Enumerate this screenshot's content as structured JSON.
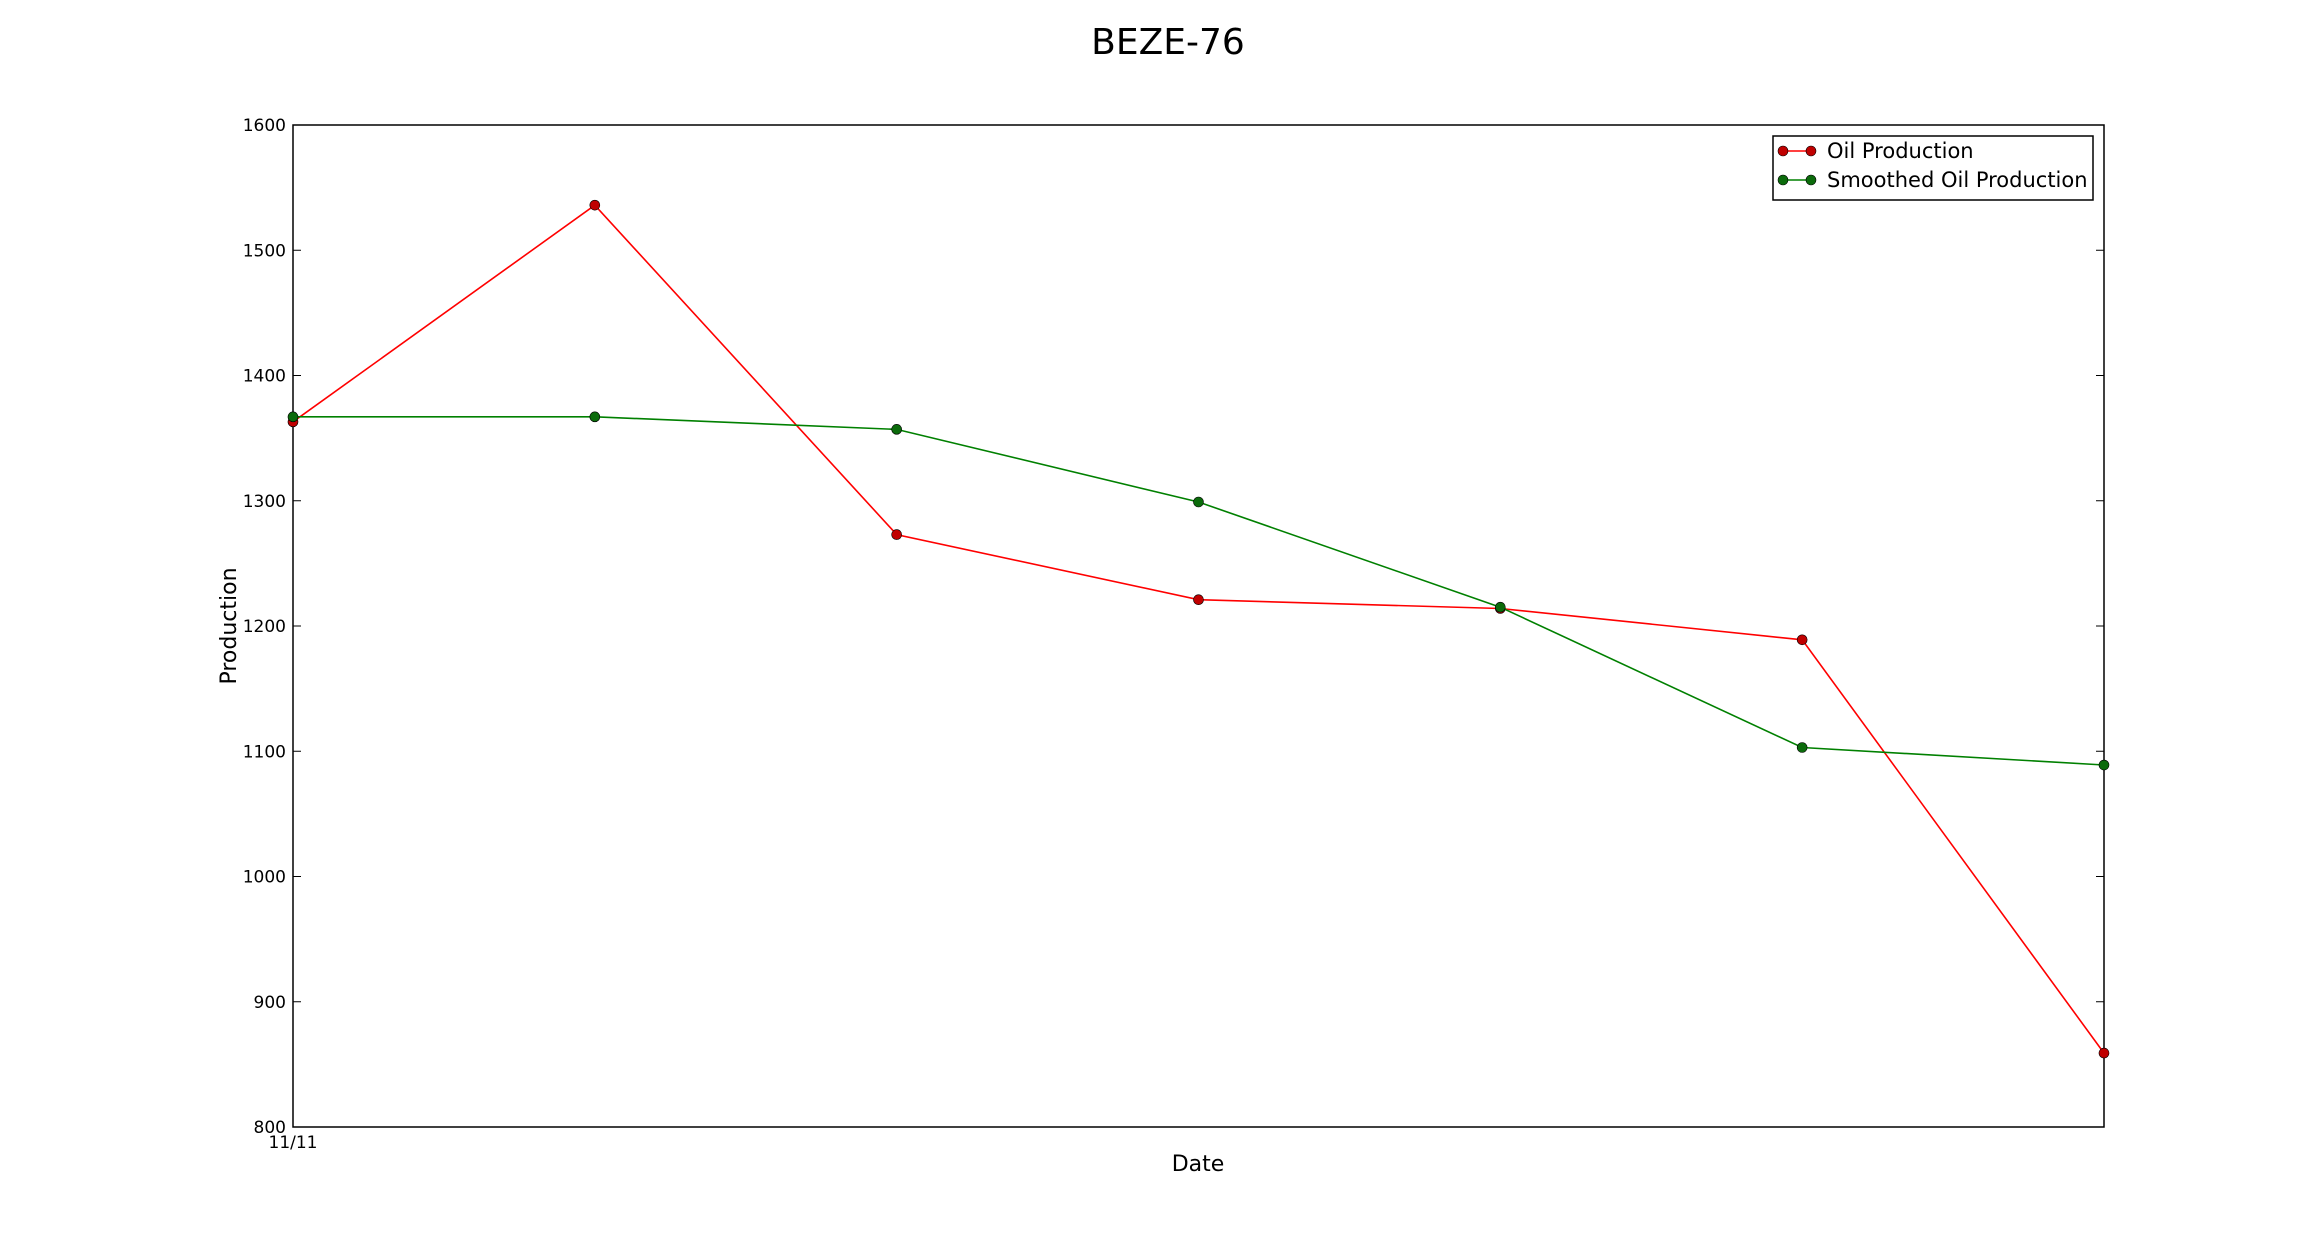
{
  "chart_data": {
    "type": "line",
    "title": "BEZE-76",
    "xlabel": "Date",
    "ylabel": "Production",
    "x_tick_labels": [
      {
        "x": 0,
        "label": "11/11"
      }
    ],
    "x": [
      0,
      1,
      2,
      3,
      4,
      5,
      6
    ],
    "xlim": [
      0,
      6
    ],
    "ylim": [
      800,
      1600
    ],
    "yticks": [
      800,
      900,
      1000,
      1100,
      1200,
      1300,
      1400,
      1500,
      1600
    ],
    "grid": false,
    "legend_position": "top-right",
    "series": [
      {
        "name": "Oil Production",
        "color": "#ff0000",
        "marker_color": "#c00000",
        "values": [
          1363,
          1536,
          1273,
          1221,
          1214,
          1189,
          859
        ]
      },
      {
        "name": "Smoothed Oil Production",
        "color": "#008000",
        "marker_color": "#0b6b0b",
        "values": [
          1367,
          1367,
          1357,
          1299,
          1215,
          1103,
          1089
        ]
      }
    ]
  }
}
